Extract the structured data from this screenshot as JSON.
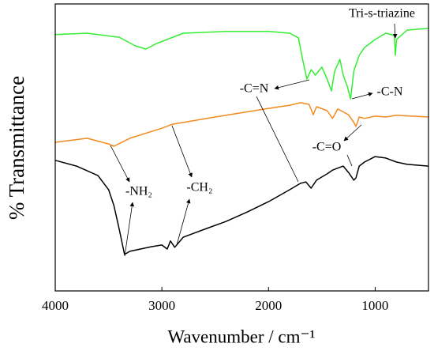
{
  "chart_data": {
    "type": "line",
    "xlabel": "Wavenumber / cm⁻¹",
    "ylabel": "% Transmittance",
    "xlim": [
      4000,
      500
    ],
    "ylim": [
      0,
      100
    ],
    "xticks": [
      4000,
      3000,
      2000,
      1000
    ],
    "annotations": [
      "Tri-s-triazine",
      "-C=N",
      "-C-N",
      "-C=O",
      "-NH₂",
      "-CH₂"
    ],
    "series": [
      {
        "color": "#33ee33",
        "x": [
          4000,
          3700,
          3400,
          3250,
          3150,
          3050,
          2800,
          2400,
          2000,
          1800,
          1720,
          1680,
          1640,
          1600,
          1560,
          1500,
          1450,
          1410,
          1380,
          1330,
          1300,
          1260,
          1230,
          1200,
          1150,
          1100,
          1000,
          900,
          820,
          810,
          800,
          700,
          500
        ],
        "values": [
          89.3,
          89.8,
          88.4,
          85.4,
          84.3,
          86.2,
          89.8,
          90.4,
          90.4,
          89.8,
          88.2,
          80.7,
          73.8,
          77.1,
          75.2,
          78.0,
          73.8,
          69.7,
          76.6,
          80.7,
          75.2,
          71.1,
          66.9,
          76.6,
          82.1,
          84.8,
          87.6,
          89.8,
          89.0,
          82.1,
          87.6,
          90.9,
          91.5
        ]
      },
      {
        "color": "#f28a1e",
        "x": [
          4000,
          3700,
          3500,
          3450,
          3300,
          3000,
          2900,
          2800,
          2500,
          2000,
          1800,
          1700,
          1620,
          1580,
          1550,
          1450,
          1400,
          1350,
          1250,
          1200,
          1180,
          1150,
          1100,
          1000,
          900,
          800,
          500
        ],
        "values": [
          51.8,
          53.2,
          51.2,
          50.4,
          53.2,
          56.7,
          58.1,
          58.7,
          60.6,
          63.6,
          64.7,
          65.6,
          65.0,
          61.4,
          64.2,
          62.8,
          60.1,
          63.4,
          61.4,
          58.7,
          57.3,
          60.6,
          60.1,
          60.9,
          60.6,
          61.2,
          60.6
        ]
      },
      {
        "color": "#000000",
        "x": [
          4000,
          3800,
          3600,
          3500,
          3450,
          3400,
          3350,
          3300,
          3200,
          3100,
          3000,
          2950,
          2920,
          2880,
          2850,
          2800,
          2600,
          2400,
          2200,
          2000,
          1800,
          1700,
          1650,
          1600,
          1550,
          1450,
          1400,
          1300,
          1250,
          1200,
          1180,
          1150,
          1100,
          1000,
          900,
          800,
          700,
          500
        ],
        "values": [
          45.5,
          43.5,
          40.2,
          35.3,
          29.8,
          21.5,
          12.7,
          13.8,
          14.6,
          15.4,
          16.0,
          14.6,
          17.4,
          15.2,
          16.5,
          18.7,
          21.5,
          24.2,
          27.5,
          31.1,
          35.3,
          37.5,
          38.0,
          35.8,
          38.6,
          40.8,
          42.1,
          43.5,
          41.3,
          38.6,
          39.4,
          43.5,
          44.9,
          46.8,
          46.3,
          44.9,
          44.1,
          43.5
        ]
      }
    ]
  }
}
